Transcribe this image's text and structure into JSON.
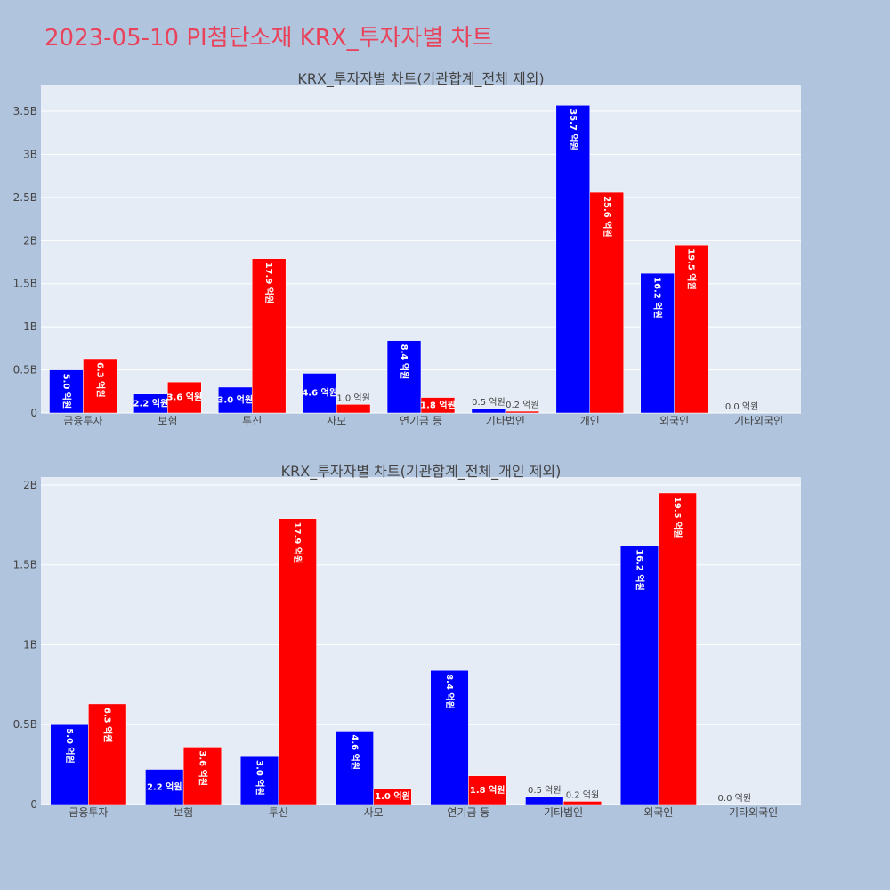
{
  "page": {
    "title": "2023-05-10 PI첨단소재 KRX_투자자별 차트"
  },
  "chart_data": [
    {
      "type": "bar",
      "title": "KRX_투자자별 차트(기관합계_전체 제외)",
      "categories": [
        "금융투자",
        "보험",
        "투신",
        "사모",
        "연기금 등",
        "기타법인",
        "개인",
        "외국인",
        "기타외국인"
      ],
      "series": [
        {
          "color": "#0000ff",
          "values": [
            0.5,
            0.22,
            0.3,
            0.46,
            0.84,
            0.05,
            3.57,
            1.62,
            0.0
          ],
          "labels": [
            "5.0 억원",
            "2.2 억원",
            "3.0 억원",
            "4.6 억원",
            "8.4 억원",
            "0.5 억원",
            "35.7 억원",
            "16.2 억원",
            "0.0 억원"
          ]
        },
        {
          "color": "#ff0000",
          "values": [
            0.63,
            0.36,
            1.79,
            0.1,
            0.18,
            0.02,
            2.56,
            1.95,
            0.0
          ],
          "labels": [
            "6.3 억원",
            "3.6 억원",
            "17.9 억원",
            "1.0 억원",
            "1.8 억원",
            "0.2 억원",
            "25.6 억원",
            "19.5 억원",
            ""
          ]
        }
      ],
      "value_unit": "B",
      "ylim": [
        0,
        3.8
      ],
      "yticks": [
        0,
        0.5,
        1,
        1.5,
        2,
        2.5,
        3,
        3.5
      ],
      "ytick_labels": [
        "0",
        "0.5B",
        "1B",
        "1.5B",
        "2B",
        "2.5B",
        "3B",
        "3.5B"
      ],
      "grid": true,
      "plot_bg": "#e5ecf6"
    },
    {
      "type": "bar",
      "title": "KRX_투자자별 차트(기관합계_전체_개인 제외)",
      "categories": [
        "금융투자",
        "보험",
        "투신",
        "사모",
        "연기금 등",
        "기타법인",
        "외국인",
        "기타외국인"
      ],
      "series": [
        {
          "color": "#0000ff",
          "values": [
            0.5,
            0.22,
            0.3,
            0.46,
            0.84,
            0.05,
            1.62,
            0.0
          ],
          "labels": [
            "5.0 억원",
            "2.2 억원",
            "3.0 억원",
            "4.6 억원",
            "8.4 억원",
            "0.5 억원",
            "16.2 억원",
            "0.0 억원"
          ]
        },
        {
          "color": "#ff0000",
          "values": [
            0.63,
            0.36,
            1.79,
            0.1,
            0.18,
            0.02,
            1.95,
            0.0
          ],
          "labels": [
            "6.3 억원",
            "3.6 억원",
            "17.9 억원",
            "1.0 억원",
            "1.8 억원",
            "0.2 억원",
            "19.5 억원",
            ""
          ]
        }
      ],
      "value_unit": "B",
      "ylim": [
        0,
        2.05
      ],
      "yticks": [
        0,
        0.5,
        1,
        1.5,
        2
      ],
      "ytick_labels": [
        "0",
        "0.5B",
        "1B",
        "1.5B",
        "2B"
      ],
      "grid": true,
      "plot_bg": "#e5ecf6"
    }
  ]
}
